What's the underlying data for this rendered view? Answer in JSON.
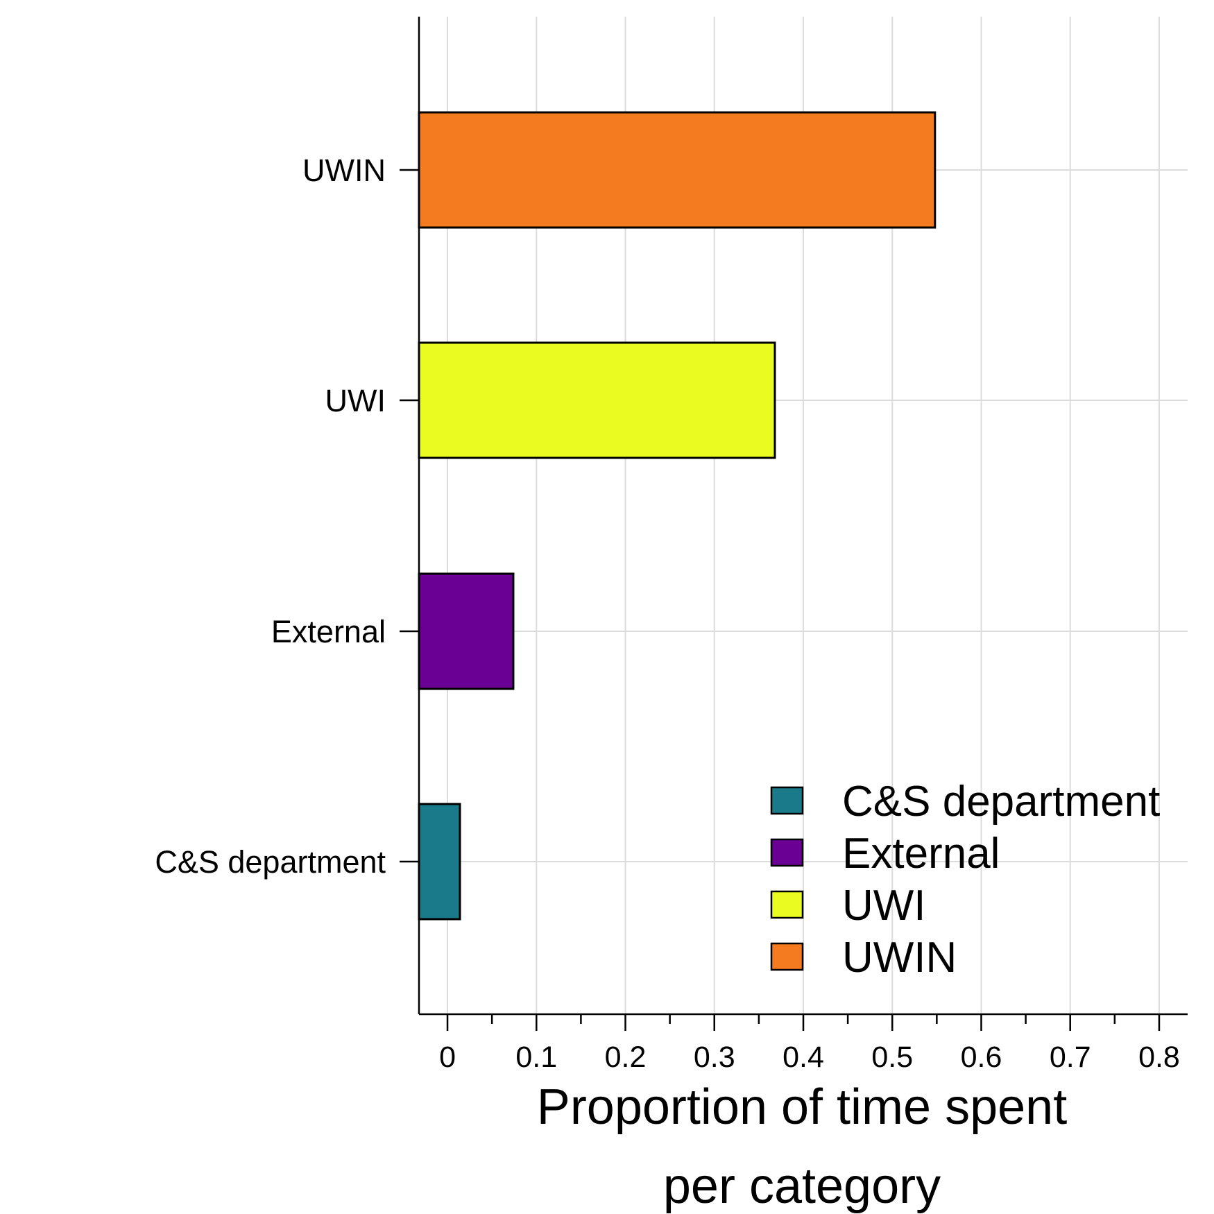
{
  "chart_data": {
    "type": "bar",
    "orientation": "horizontal",
    "categories": [
      "C&S department",
      "External",
      "UWI",
      "UWIN"
    ],
    "values": [
      0.014,
      0.074,
      0.368,
      0.548
    ],
    "colors": [
      "#1b7a89",
      "#6a0094",
      "#eafb22",
      "#f47b20"
    ],
    "xlim": [
      -0.032,
      0.832
    ],
    "xticks": [
      0,
      0.1,
      0.2,
      0.3,
      0.4,
      0.5,
      0.6,
      0.7,
      0.8
    ],
    "xtick_labels": [
      "0",
      "0.1",
      "0.2",
      "0.3",
      "0.4",
      "0.5",
      "0.6",
      "0.7",
      "0.8"
    ],
    "xlabel_lines": [
      "Proportion of time spent",
      "per category"
    ],
    "ylabel": "",
    "grid": true,
    "legend_position": "bottom-right",
    "legend": [
      {
        "label": "C&S department",
        "color": "#1b7a89"
      },
      {
        "label": "External",
        "color": "#6a0094"
      },
      {
        "label": "UWI",
        "color": "#eafb22"
      },
      {
        "label": "UWIN",
        "color": "#f47b20"
      }
    ]
  }
}
